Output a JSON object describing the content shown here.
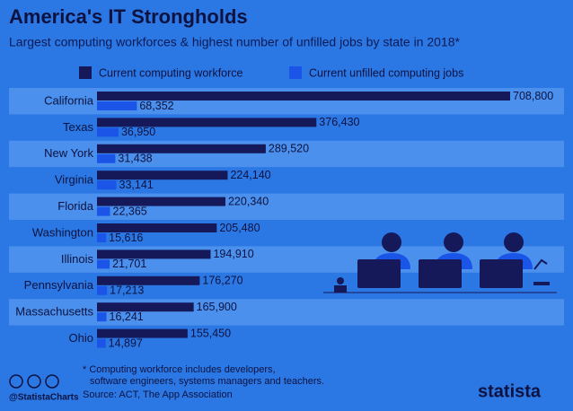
{
  "chart_data": {
    "type": "bar",
    "orientation": "horizontal",
    "title": "America's IT Strongholds",
    "subtitle": "Largest computing workforces & highest number of unfilled jobs by state in 2018*",
    "categories": [
      "California",
      "Texas",
      "New York",
      "Virginia",
      "Florida",
      "Washington",
      "Illinois",
      "Pennsylvania",
      "Massachusetts",
      "Ohio"
    ],
    "series": [
      {
        "name": "Current computing workforce",
        "color": "#15195a",
        "values": [
          708800,
          376430,
          289520,
          224140,
          220340,
          205480,
          194910,
          176270,
          165900,
          155450
        ],
        "value_labels": [
          "708,800",
          "376,430",
          "289,520",
          "224,140",
          "220,340",
          "205,480",
          "194,910",
          "176,270",
          "165,900",
          "155,450"
        ]
      },
      {
        "name": "Current unfilled computing jobs",
        "color": "#1a55e8",
        "values": [
          68352,
          36950,
          31438,
          33141,
          22365,
          15616,
          21701,
          17213,
          16241,
          14897
        ],
        "value_labels": [
          "68,352",
          "36,950",
          "31,438",
          "33,141",
          "22,365",
          "15,616",
          "21,701",
          "17,213",
          "16,241",
          "14,897"
        ]
      }
    ],
    "footnote": [
      "* Computing workforce includes developers,",
      "software engineers, systems managers and teachers."
    ],
    "source": "Source: ACT, The App Association",
    "credit": "@StatistaCharts",
    "brand": "statista"
  }
}
